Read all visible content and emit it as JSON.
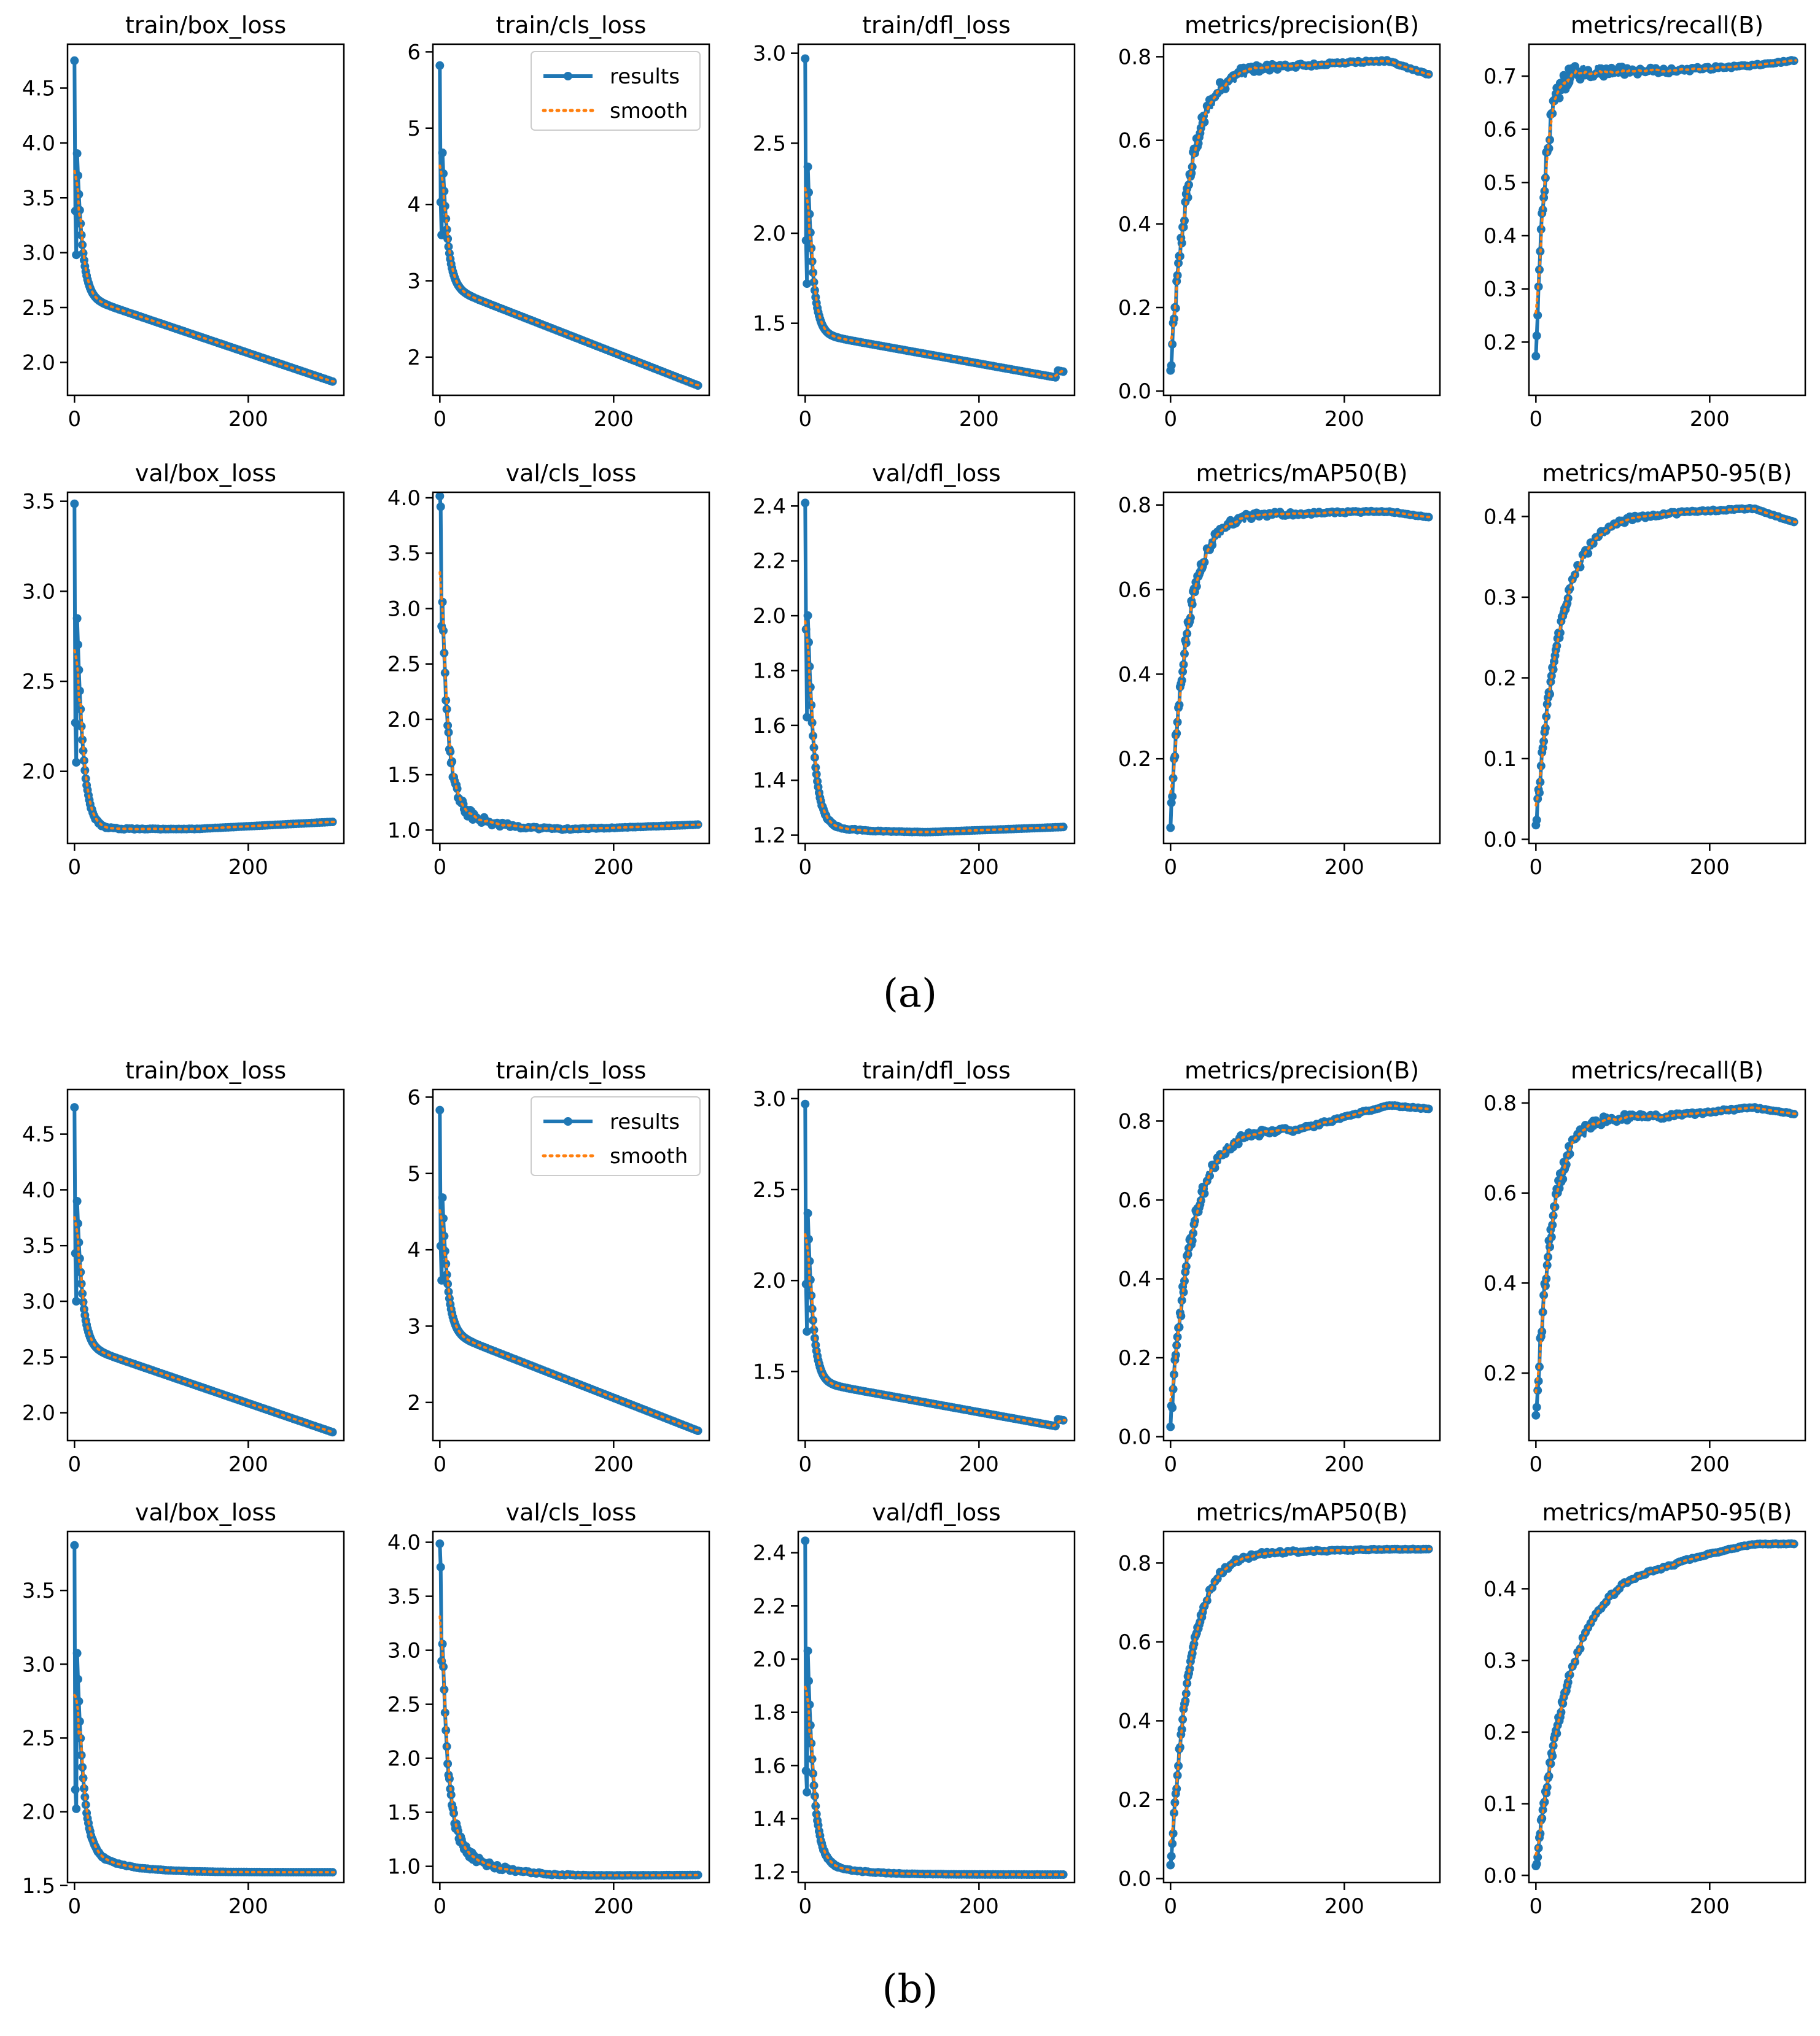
{
  "figure_labels": [
    "(a)",
    "(b)"
  ],
  "legend": {
    "results": "results",
    "smooth": "smooth"
  },
  "colors": {
    "results": "#1f77b4",
    "smooth": "#ff7f0e",
    "axes": "#000000"
  },
  "chart_data": [
    {
      "id": "a1",
      "type": "line",
      "title": "train/box_loss",
      "xlim": [
        -8,
        310
      ],
      "ylim": [
        1.7,
        4.9
      ],
      "xticks": [
        0,
        200
      ],
      "yticks": [
        2.0,
        2.5,
        3.0,
        3.5,
        4.0,
        4.5
      ],
      "ytick_labels": [
        "2.0",
        "2.5",
        "3.0",
        "3.5",
        "4.0",
        "4.5"
      ],
      "shape": "loss",
      "start": 4.75,
      "knee": 2.62,
      "end": 1.82,
      "spikes": [
        [
          1,
          3.38
        ],
        [
          2,
          2.98
        ]
      ],
      "tail_bump": 0.0,
      "noise": 0.0
    },
    {
      "id": "a2",
      "type": "line",
      "title": "train/cls_loss",
      "xlim": [
        -8,
        310
      ],
      "ylim": [
        1.5,
        6.1
      ],
      "xticks": [
        0,
        200
      ],
      "yticks": [
        2,
        3,
        4,
        5,
        6
      ],
      "ytick_labels": [
        "2",
        "3",
        "4",
        "5",
        "6"
      ],
      "shape": "loss",
      "start": 5.82,
      "knee": 2.95,
      "end": 1.62,
      "spikes": [
        [
          1,
          4.03
        ],
        [
          2,
          3.6
        ]
      ],
      "tail_bump": 0.0,
      "noise": 0.0,
      "legend": true
    },
    {
      "id": "a3",
      "type": "line",
      "title": "train/dfl_loss",
      "xlim": [
        -8,
        310
      ],
      "ylim": [
        1.1,
        3.05
      ],
      "xticks": [
        0,
        200
      ],
      "yticks": [
        1.5,
        2.0,
        2.5,
        3.0
      ],
      "ytick_labels": [
        "1.5",
        "2.0",
        "2.5",
        "3.0"
      ],
      "shape": "loss",
      "start": 2.97,
      "knee": 1.45,
      "end": 1.19,
      "spikes": [
        [
          1,
          1.96
        ],
        [
          2,
          1.72
        ]
      ],
      "tail_bump": 0.04,
      "noise": 0.0
    },
    {
      "id": "a4",
      "type": "line",
      "title": "metrics/precision(B)",
      "xlim": [
        -8,
        310
      ],
      "ylim": [
        -0.01,
        0.83
      ],
      "xticks": [
        0,
        200
      ],
      "yticks": [
        0.0,
        0.2,
        0.4,
        0.6,
        0.8
      ],
      "ytick_labels": [
        "0.0",
        "0.2",
        "0.4",
        "0.6",
        "0.8"
      ],
      "shape": "metric",
      "start": 0.04,
      "rise": 0.3,
      "plateau": 0.78,
      "peak": 0.79,
      "end": 0.755,
      "tau": 22,
      "noise": 0.03
    },
    {
      "id": "a5",
      "type": "line",
      "title": "metrics/recall(B)",
      "xlim": [
        -8,
        310
      ],
      "ylim": [
        0.1,
        0.76
      ],
      "xticks": [
        0,
        200
      ],
      "yticks": [
        0.2,
        0.3,
        0.4,
        0.5,
        0.6,
        0.7
      ],
      "ytick_labels": [
        "0.2",
        "0.3",
        "0.4",
        "0.5",
        "0.6",
        "0.7"
      ],
      "shape": "metric",
      "start": 0.15,
      "rise": 0.45,
      "plateau": 0.71,
      "peak": 0.72,
      "end": 0.73,
      "tau": 10,
      "noise": 0.025
    },
    {
      "id": "a6",
      "type": "line",
      "title": "val/box_loss",
      "xlim": [
        -8,
        310
      ],
      "ylim": [
        1.6,
        3.55
      ],
      "xticks": [
        0,
        200
      ],
      "yticks": [
        2.0,
        2.5,
        3.0,
        3.5
      ],
      "ytick_labels": [
        "2.0",
        "2.5",
        "3.0",
        "3.5"
      ],
      "shape": "valloss",
      "start": 3.48,
      "knee": 1.68,
      "end": 1.72,
      "min": 1.68,
      "spikes": [
        [
          1,
          2.27
        ],
        [
          2,
          2.05
        ]
      ],
      "noise": 0.008
    },
    {
      "id": "a7",
      "type": "line",
      "title": "val/cls_loss",
      "xlim": [
        -8,
        310
      ],
      "ylim": [
        0.88,
        4.05
      ],
      "xticks": [
        0,
        200
      ],
      "yticks": [
        1.0,
        1.5,
        2.0,
        2.5,
        3.0,
        3.5,
        4.0
      ],
      "ytick_labels": [
        "1.0",
        "1.5",
        "2.0",
        "2.5",
        "3.0",
        "3.5",
        "4.0"
      ],
      "shape": "valloss",
      "start": 3.95,
      "knee": 1.3,
      "end": 1.05,
      "min": 1.0,
      "spikes": [
        [
          1,
          3.92
        ],
        [
          2,
          2.84
        ]
      ],
      "noise": 0.07
    },
    {
      "id": "a8",
      "type": "line",
      "title": "val/dfl_loss",
      "xlim": [
        -8,
        310
      ],
      "ylim": [
        1.17,
        2.45
      ],
      "xticks": [
        0,
        200
      ],
      "yticks": [
        1.2,
        1.4,
        1.6,
        1.8,
        2.0,
        2.2,
        2.4
      ],
      "ytick_labels": [
        "1.2",
        "1.4",
        "1.6",
        "1.8",
        "2.0",
        "2.2",
        "2.4"
      ],
      "shape": "valloss",
      "start": 2.41,
      "knee": 1.25,
      "end": 1.23,
      "min": 1.21,
      "spikes": [
        [
          1,
          1.95
        ],
        [
          2,
          1.63
        ]
      ],
      "noise": 0.005
    },
    {
      "id": "a9",
      "type": "line",
      "title": "metrics/mAP50(B)",
      "xlim": [
        -8,
        310
      ],
      "ylim": [
        0.0,
        0.83
      ],
      "xticks": [
        0,
        200
      ],
      "yticks": [
        0.2,
        0.4,
        0.6,
        0.8
      ],
      "ytick_labels": [
        "0.2",
        "0.4",
        "0.6",
        "0.8"
      ],
      "shape": "metric",
      "start": 0.05,
      "rise": 0.25,
      "plateau": 0.78,
      "peak": 0.785,
      "end": 0.77,
      "tau": 20,
      "noise": 0.02
    },
    {
      "id": "a10",
      "type": "line",
      "title": "metrics/mAP50-95(B)",
      "xlim": [
        -8,
        310
      ],
      "ylim": [
        -0.005,
        0.43
      ],
      "xticks": [
        0,
        200
      ],
      "yticks": [
        0.0,
        0.1,
        0.2,
        0.3,
        0.4
      ],
      "ytick_labels": [
        "0.0",
        "0.1",
        "0.2",
        "0.3",
        "0.4"
      ],
      "shape": "metric",
      "start": 0.015,
      "rise": 0.1,
      "plateau": 0.405,
      "peak": 0.41,
      "end": 0.392,
      "tau": 28,
      "noise": 0.01
    },
    {
      "id": "b1",
      "type": "line",
      "title": "train/box_loss",
      "xlim": [
        -8,
        310
      ],
      "ylim": [
        1.75,
        4.9
      ],
      "xticks": [
        0,
        200
      ],
      "yticks": [
        2.0,
        2.5,
        3.0,
        3.5,
        4.0,
        4.5
      ],
      "ytick_labels": [
        "2.0",
        "2.5",
        "3.0",
        "3.5",
        "4.0",
        "4.5"
      ],
      "shape": "loss",
      "start": 4.74,
      "knee": 2.62,
      "end": 1.82,
      "spikes": [
        [
          1,
          3.43
        ],
        [
          2,
          3.0
        ]
      ],
      "tail_bump": 0.0,
      "noise": 0.0
    },
    {
      "id": "b2",
      "type": "line",
      "title": "train/cls_loss",
      "xlim": [
        -8,
        310
      ],
      "ylim": [
        1.5,
        6.1
      ],
      "xticks": [
        0,
        200
      ],
      "yticks": [
        2,
        3,
        4,
        5,
        6
      ],
      "ytick_labels": [
        "2",
        "3",
        "4",
        "5",
        "6"
      ],
      "shape": "loss",
      "start": 5.83,
      "knee": 2.95,
      "end": 1.62,
      "spikes": [
        [
          1,
          4.05
        ],
        [
          2,
          3.6
        ]
      ],
      "tail_bump": 0.0,
      "noise": 0.0,
      "legend": true
    },
    {
      "id": "b3",
      "type": "line",
      "title": "train/dfl_loss",
      "xlim": [
        -8,
        310
      ],
      "ylim": [
        1.12,
        3.05
      ],
      "xticks": [
        0,
        200
      ],
      "yticks": [
        1.5,
        2.0,
        2.5,
        3.0
      ],
      "ytick_labels": [
        "1.5",
        "2.0",
        "2.5",
        "3.0"
      ],
      "shape": "loss",
      "start": 2.97,
      "knee": 1.45,
      "end": 1.19,
      "spikes": [
        [
          1,
          1.98
        ],
        [
          2,
          1.72
        ]
      ],
      "tail_bump": 0.04,
      "noise": 0.0
    },
    {
      "id": "b4",
      "type": "line",
      "title": "metrics/precision(B)",
      "xlim": [
        -8,
        310
      ],
      "ylim": [
        -0.01,
        0.88
      ],
      "xticks": [
        0,
        200
      ],
      "yticks": [
        0.0,
        0.2,
        0.4,
        0.6,
        0.8
      ],
      "ytick_labels": [
        "0.0",
        "0.2",
        "0.4",
        "0.6",
        "0.8"
      ],
      "shape": "metric",
      "start": 0.03,
      "rise": 0.3,
      "plateau": 0.78,
      "peak": 0.84,
      "end": 0.83,
      "tau": 24,
      "noise": 0.025
    },
    {
      "id": "b5",
      "type": "line",
      "title": "metrics/recall(B)",
      "xlim": [
        -8,
        310
      ],
      "ylim": [
        0.05,
        0.83
      ],
      "xticks": [
        0,
        200
      ],
      "yticks": [
        0.2,
        0.4,
        0.6,
        0.8
      ],
      "ytick_labels": [
        "0.2",
        "0.4",
        "0.6",
        "0.8"
      ],
      "shape": "metric",
      "start": 0.09,
      "rise": 0.4,
      "plateau": 0.77,
      "peak": 0.79,
      "end": 0.775,
      "tau": 18,
      "noise": 0.025
    },
    {
      "id": "b6",
      "type": "line",
      "title": "val/box_loss",
      "xlim": [
        -8,
        310
      ],
      "ylim": [
        1.52,
        3.9
      ],
      "xticks": [
        0,
        200
      ],
      "yticks": [
        1.5,
        2.0,
        2.5,
        3.0,
        3.5
      ],
      "ytick_labels": [
        "1.5",
        "2.0",
        "2.5",
        "3.0",
        "3.5"
      ],
      "shape": "valloss",
      "start": 3.8,
      "knee": 1.78,
      "end": 1.59,
      "min": 1.59,
      "spikes": [
        [
          1,
          2.15
        ],
        [
          2,
          2.02
        ]
      ],
      "noise": 0.008
    },
    {
      "id": "b7",
      "type": "line",
      "title": "val/cls_loss",
      "xlim": [
        -8,
        310
      ],
      "ylim": [
        0.85,
        4.1
      ],
      "xticks": [
        0,
        200
      ],
      "yticks": [
        1.0,
        1.5,
        2.0,
        2.5,
        3.0,
        3.5,
        4.0
      ],
      "ytick_labels": [
        "1.0",
        "1.5",
        "2.0",
        "2.5",
        "3.0",
        "3.5",
        "4.0"
      ],
      "shape": "valloss",
      "start": 3.99,
      "knee": 1.35,
      "end": 0.92,
      "min": 0.91,
      "spikes": [
        [
          1,
          3.77
        ],
        [
          2,
          2.9
        ]
      ],
      "noise": 0.06
    },
    {
      "id": "b8",
      "type": "line",
      "title": "val/dfl_loss",
      "xlim": [
        -8,
        310
      ],
      "ylim": [
        1.16,
        2.48
      ],
      "xticks": [
        0,
        200
      ],
      "yticks": [
        1.2,
        1.4,
        1.6,
        1.8,
        2.0,
        2.2,
        2.4
      ],
      "ytick_labels": [
        "1.2",
        "1.4",
        "1.6",
        "1.8",
        "2.0",
        "2.2",
        "2.4"
      ],
      "shape": "valloss",
      "start": 2.45,
      "knee": 1.25,
      "end": 1.19,
      "min": 1.19,
      "spikes": [
        [
          1,
          1.58
        ],
        [
          2,
          1.5
        ]
      ],
      "noise": 0.005
    },
    {
      "id": "b9",
      "type": "line",
      "title": "metrics/mAP50(B)",
      "xlim": [
        -8,
        310
      ],
      "ylim": [
        -0.01,
        0.88
      ],
      "xticks": [
        0,
        200
      ],
      "yticks": [
        0.0,
        0.2,
        0.4,
        0.6,
        0.8
      ],
      "ytick_labels": [
        "0.0",
        "0.2",
        "0.4",
        "0.6",
        "0.8"
      ],
      "shape": "metric",
      "start": 0.02,
      "rise": 0.3,
      "plateau": 0.83,
      "peak": 0.835,
      "end": 0.835,
      "tau": 22,
      "noise": 0.015
    },
    {
      "id": "b10",
      "type": "line",
      "title": "metrics/mAP50-95(B)",
      "xlim": [
        -8,
        310
      ],
      "ylim": [
        -0.01,
        0.48
      ],
      "xticks": [
        0,
        200
      ],
      "yticks": [
        0.0,
        0.1,
        0.2,
        0.3,
        0.4
      ],
      "ytick_labels": [
        "0.0",
        "0.1",
        "0.2",
        "0.3",
        "0.4"
      ],
      "shape": "metric",
      "start": 0.01,
      "rise": 0.1,
      "plateau": 0.44,
      "peak": 0.463,
      "end": 0.463,
      "tau": 40,
      "noise": 0.008
    }
  ]
}
